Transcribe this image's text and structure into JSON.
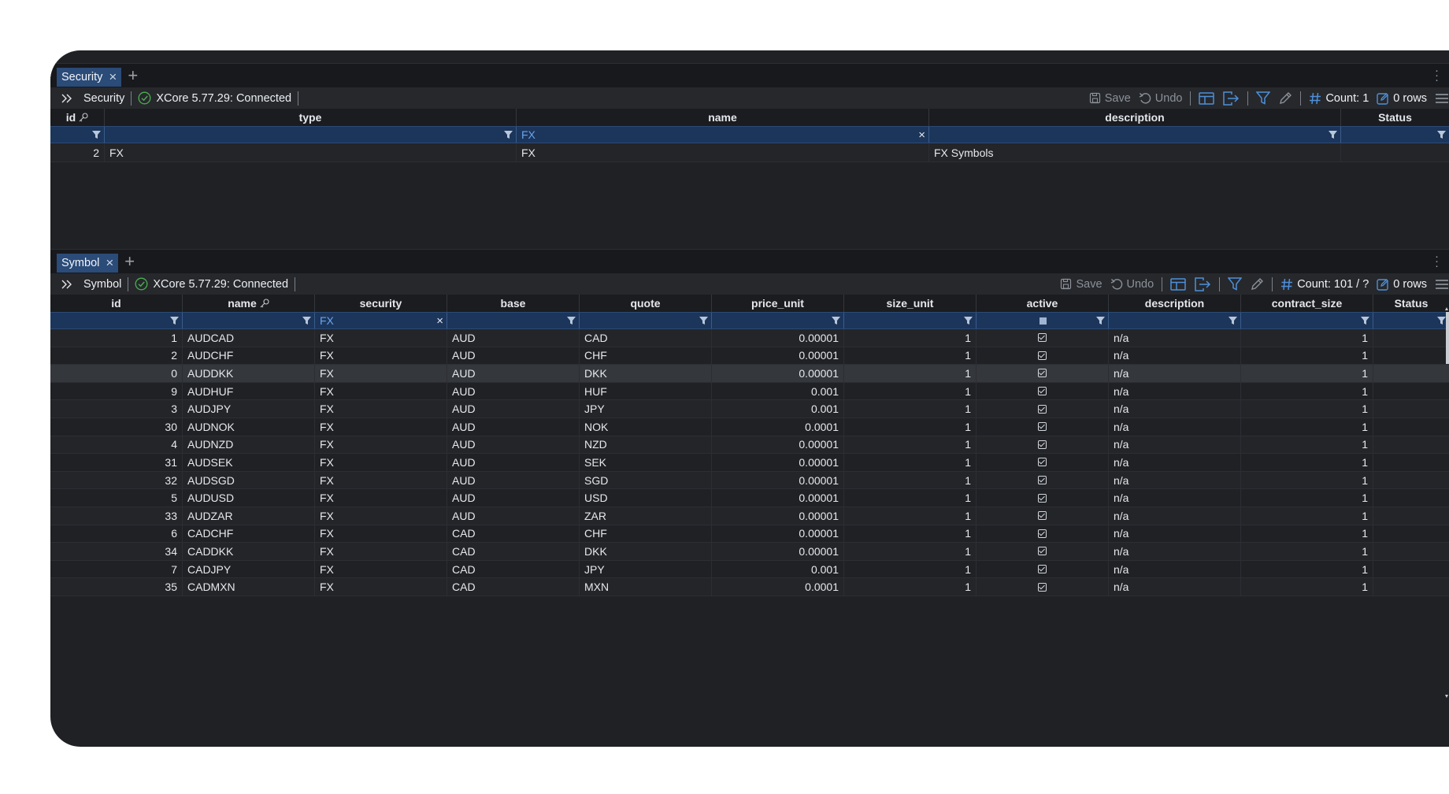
{
  "colors": {
    "accent": "#4e8fd8",
    "tab_bg": "#2b4b78",
    "filter_bg": "#1c355b",
    "connected": "#4caf50"
  },
  "security_panel": {
    "tab_label": "Security",
    "toolbar": {
      "title": "Security",
      "connection": "XCore 5.77.29: Connected",
      "save": "Save",
      "undo": "Undo",
      "count": "Count: 1",
      "rows": "0 rows"
    },
    "columns": [
      "id",
      "type",
      "name",
      "description",
      "Status"
    ],
    "filter_values": {
      "name": "FX"
    },
    "rows": [
      {
        "id": "2",
        "type": "FX",
        "name": "FX",
        "description": "FX Symbols",
        "status": ""
      }
    ]
  },
  "symbol_panel": {
    "tab_label": "Symbol",
    "toolbar": {
      "title": "Symbol",
      "connection": "XCore 5.77.29: Connected",
      "save": "Save",
      "undo": "Undo",
      "count": "Count: 101 / ?",
      "rows": "0 rows"
    },
    "columns": [
      "id",
      "name",
      "security",
      "base",
      "quote",
      "price_unit",
      "size_unit",
      "active",
      "description",
      "contract_size",
      "Status"
    ],
    "filter_values": {
      "security": "FX"
    },
    "rows": [
      {
        "id": "1",
        "name": "AUDCAD",
        "security": "FX",
        "base": "AUD",
        "quote": "CAD",
        "price_unit": "0.00001",
        "size_unit": "1",
        "description": "n/a",
        "contract_size": "1"
      },
      {
        "id": "2",
        "name": "AUDCHF",
        "security": "FX",
        "base": "AUD",
        "quote": "CHF",
        "price_unit": "0.00001",
        "size_unit": "1",
        "description": "n/a",
        "contract_size": "1"
      },
      {
        "id": "0",
        "name": "AUDDKK",
        "security": "FX",
        "base": "AUD",
        "quote": "DKK",
        "price_unit": "0.00001",
        "size_unit": "1",
        "description": "n/a",
        "contract_size": "1"
      },
      {
        "id": "9",
        "name": "AUDHUF",
        "security": "FX",
        "base": "AUD",
        "quote": "HUF",
        "price_unit": "0.001",
        "size_unit": "1",
        "description": "n/a",
        "contract_size": "1"
      },
      {
        "id": "3",
        "name": "AUDJPY",
        "security": "FX",
        "base": "AUD",
        "quote": "JPY",
        "price_unit": "0.001",
        "size_unit": "1",
        "description": "n/a",
        "contract_size": "1"
      },
      {
        "id": "30",
        "name": "AUDNOK",
        "security": "FX",
        "base": "AUD",
        "quote": "NOK",
        "price_unit": "0.0001",
        "size_unit": "1",
        "description": "n/a",
        "contract_size": "1"
      },
      {
        "id": "4",
        "name": "AUDNZD",
        "security": "FX",
        "base": "AUD",
        "quote": "NZD",
        "price_unit": "0.00001",
        "size_unit": "1",
        "description": "n/a",
        "contract_size": "1"
      },
      {
        "id": "31",
        "name": "AUDSEK",
        "security": "FX",
        "base": "AUD",
        "quote": "SEK",
        "price_unit": "0.00001",
        "size_unit": "1",
        "description": "n/a",
        "contract_size": "1"
      },
      {
        "id": "32",
        "name": "AUDSGD",
        "security": "FX",
        "base": "AUD",
        "quote": "SGD",
        "price_unit": "0.00001",
        "size_unit": "1",
        "description": "n/a",
        "contract_size": "1"
      },
      {
        "id": "5",
        "name": "AUDUSD",
        "security": "FX",
        "base": "AUD",
        "quote": "USD",
        "price_unit": "0.00001",
        "size_unit": "1",
        "description": "n/a",
        "contract_size": "1"
      },
      {
        "id": "33",
        "name": "AUDZAR",
        "security": "FX",
        "base": "AUD",
        "quote": "ZAR",
        "price_unit": "0.00001",
        "size_unit": "1",
        "description": "n/a",
        "contract_size": "1"
      },
      {
        "id": "6",
        "name": "CADCHF",
        "security": "FX",
        "base": "CAD",
        "quote": "CHF",
        "price_unit": "0.00001",
        "size_unit": "1",
        "description": "n/a",
        "contract_size": "1"
      },
      {
        "id": "34",
        "name": "CADDKK",
        "security": "FX",
        "base": "CAD",
        "quote": "DKK",
        "price_unit": "0.00001",
        "size_unit": "1",
        "description": "n/a",
        "contract_size": "1"
      },
      {
        "id": "7",
        "name": "CADJPY",
        "security": "FX",
        "base": "CAD",
        "quote": "JPY",
        "price_unit": "0.001",
        "size_unit": "1",
        "description": "n/a",
        "contract_size": "1"
      },
      {
        "id": "35",
        "name": "CADMXN",
        "security": "FX",
        "base": "CAD",
        "quote": "MXN",
        "price_unit": "0.0001",
        "size_unit": "1",
        "description": "n/a",
        "contract_size": "1"
      }
    ]
  }
}
